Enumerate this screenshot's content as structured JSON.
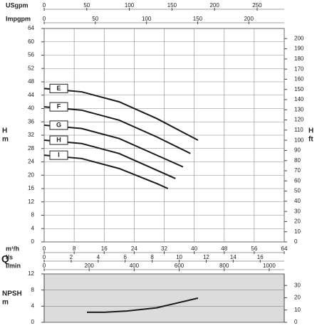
{
  "chart_data": [
    {
      "type": "line",
      "y_label": "H",
      "y_unit": "m",
      "y2_label": "H",
      "y2_unit": "ft",
      "quantity_label": "Q",
      "xlim": [
        0,
        64
      ],
      "ylim": [
        0,
        64
      ],
      "yticks": [
        0,
        4,
        8,
        12,
        16,
        20,
        24,
        28,
        32,
        36,
        40,
        44,
        48,
        52,
        56,
        60,
        64
      ],
      "y2lim": [
        0,
        210
      ],
      "y2ticks": [
        0,
        10,
        20,
        30,
        40,
        50,
        60,
        70,
        80,
        90,
        100,
        110,
        120,
        130,
        140,
        150,
        160,
        170,
        180,
        190,
        200
      ],
      "grid": true,
      "x_axes": [
        {
          "label": "USgpm",
          "position": "top",
          "lim": [
            0,
            281.8
          ],
          "ticks": [
            0,
            50,
            100,
            150,
            200,
            250
          ]
        },
        {
          "label": "Impgpm",
          "position": "top",
          "lim": [
            0,
            234.6
          ],
          "ticks": [
            0,
            50,
            100,
            150,
            200
          ]
        },
        {
          "label": "m³/h",
          "position": "bottom",
          "lim": [
            0,
            64
          ],
          "ticks": [
            0,
            8,
            16,
            24,
            32,
            40,
            48,
            56,
            64
          ]
        },
        {
          "label": "l/s",
          "position": "bottom",
          "lim": [
            0,
            17.78
          ],
          "ticks": [
            0,
            2,
            4,
            6,
            8,
            10,
            12,
            14,
            16
          ]
        },
        {
          "label": "l/min",
          "position": "bottom",
          "lim": [
            0,
            1066.7
          ],
          "ticks": [
            0,
            200,
            400,
            600,
            800,
            1000
          ]
        }
      ],
      "series": [
        {
          "name": "E",
          "color": "#1a1a1a",
          "x": [
            0,
            10,
            20,
            30,
            41
          ],
          "values": [
            46,
            45,
            42,
            37,
            30.5
          ]
        },
        {
          "name": "F",
          "color": "#1a1a1a",
          "x": [
            0,
            10,
            20,
            30,
            39
          ],
          "values": [
            40.5,
            39.5,
            36.5,
            31.5,
            26.5
          ]
        },
        {
          "name": "G",
          "color": "#1a1a1a",
          "x": [
            0,
            10,
            20,
            30,
            37
          ],
          "values": [
            35,
            34,
            31,
            26,
            22.5
          ]
        },
        {
          "name": "H",
          "color": "#1a1a1a",
          "x": [
            0,
            10,
            20,
            30,
            35
          ],
          "values": [
            30.5,
            29.5,
            26.5,
            21.5,
            19
          ]
        },
        {
          "name": "I",
          "color": "#1a1a1a",
          "x": [
            0,
            10,
            20,
            30,
            33
          ],
          "values": [
            26,
            25,
            22,
            17.5,
            16
          ]
        }
      ]
    },
    {
      "type": "line",
      "y_label": "NPSH",
      "y_unit": "m",
      "xlim": [
        0,
        64
      ],
      "ylim": [
        0,
        12
      ],
      "yticks": [
        0,
        4,
        8,
        12
      ],
      "y2lim": [
        0,
        39.37
      ],
      "y2ticks": [
        0,
        10,
        20,
        30
      ],
      "grid": true,
      "background": "#dcdcdc",
      "series": [
        {
          "color": "#1a1a1a",
          "x": [
            11.4,
            16,
            22,
            30,
            41
          ],
          "values": [
            2.5,
            2.5,
            2.8,
            3.6,
            6
          ]
        }
      ]
    }
  ]
}
